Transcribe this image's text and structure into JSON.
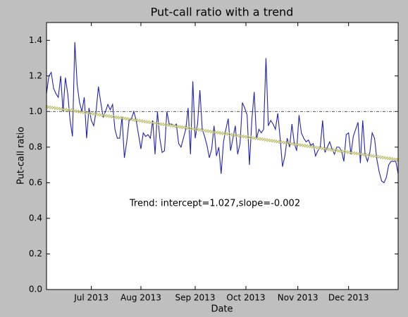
{
  "chart_data": {
    "type": "line",
    "title": "Put-call ratio with a trend",
    "xlabel": "Date",
    "ylabel": "Put-call ratio",
    "annotation": "Trend: intercept=1.027,slope=-0.002",
    "xlim": [
      0,
      149
    ],
    "xticks": [
      {
        "value": 19,
        "label": "Jul 2013"
      },
      {
        "value": 40,
        "label": "Aug 2013"
      },
      {
        "value": 63,
        "label": "Sep 2013"
      },
      {
        "value": 84.5,
        "label": "Oct 2013"
      },
      {
        "value": 106.5,
        "label": "Nov 2013"
      },
      {
        "value": 128,
        "label": "Dec 2013"
      }
    ],
    "ylim": [
      0,
      1.5
    ],
    "yticks": [
      {
        "value": 0,
        "label": "0.0"
      },
      0.2,
      0.4,
      0.6,
      0.8,
      {
        "value": 1,
        "label": "1.0"
      },
      1.2,
      1.4
    ],
    "reference_line": 1,
    "reference_color": "#555555",
    "series": [
      {
        "color": "#2323b0",
        "values": [
          1.1,
          1.2,
          1.22,
          1.13,
          1.1,
          1.08,
          1.2,
          1.0,
          1.19,
          1.1,
          0.95,
          0.86,
          1.39,
          1.15,
          1.05,
          1.0,
          1.08,
          0.85,
          1.02,
          0.95,
          0.92,
          1.0,
          1.14,
          1.05,
          0.97,
          1.0,
          1.04,
          1.01,
          1.04,
          0.9,
          0.85,
          0.85,
          0.97,
          0.74,
          0.83,
          0.95,
          0.96,
          1.0,
          0.95,
          0.87,
          0.79,
          0.88,
          0.86,
          0.87,
          0.85,
          0.95,
          0.76,
          1.0,
          0.85,
          0.77,
          0.78,
          1.0,
          0.93,
          0.93,
          0.92,
          0.93,
          0.82,
          0.8,
          0.85,
          0.9,
          1.02,
          0.76,
          1.17,
          0.85,
          0.93,
          1.12,
          0.9,
          0.86,
          0.81,
          0.74,
          0.79,
          0.92,
          0.75,
          0.8,
          0.65,
          0.83,
          0.9,
          0.96,
          0.78,
          0.85,
          0.92,
          0.76,
          0.82,
          1.05,
          1.02,
          0.98,
          0.7,
          0.95,
          1.11,
          0.85,
          0.9,
          0.88,
          0.9,
          1.3,
          0.92,
          0.95,
          0.93,
          0.9,
          0.99,
          0.85,
          0.69,
          0.75,
          0.85,
          0.8,
          0.93,
          0.82,
          0.78,
          0.98,
          0.88,
          0.85,
          0.83,
          0.84,
          0.81,
          0.82,
          0.75,
          0.78,
          0.8,
          0.95,
          0.77,
          0.8,
          0.83,
          0.79,
          0.76,
          0.8,
          0.8,
          0.78,
          0.72,
          0.87,
          0.88,
          0.76,
          0.86,
          0.9,
          0.94,
          0.71,
          0.95,
          0.76,
          0.72,
          0.77,
          0.88,
          0.85,
          0.73,
          0.66,
          0.61,
          0.6,
          0.63,
          0.7,
          0.72,
          0.72,
          0.72,
          0.65
        ]
      },
      {
        "color": "#bdbd6a",
        "marker": "x",
        "values": [
          1.027,
          1.025,
          1.023,
          1.021,
          1.019,
          1.017,
          1.015,
          1.013,
          1.011,
          1.009,
          1.007,
          1.005,
          1.003,
          1.001,
          0.999,
          0.997,
          0.995,
          0.993,
          0.991,
          0.989,
          0.987,
          0.985,
          0.983,
          0.981,
          0.979,
          0.977,
          0.975,
          0.973,
          0.971,
          0.969,
          0.967,
          0.965,
          0.963,
          0.961,
          0.959,
          0.957,
          0.955,
          0.953,
          0.951,
          0.949,
          0.947,
          0.945,
          0.943,
          0.941,
          0.939,
          0.937,
          0.935,
          0.933,
          0.931,
          0.929,
          0.927,
          0.925,
          0.923,
          0.921,
          0.919,
          0.917,
          0.915,
          0.913,
          0.911,
          0.909,
          0.907,
          0.905,
          0.903,
          0.901,
          0.899,
          0.897,
          0.895,
          0.893,
          0.891,
          0.889,
          0.887,
          0.885,
          0.883,
          0.881,
          0.879,
          0.877,
          0.875,
          0.873,
          0.871,
          0.869,
          0.867,
          0.865,
          0.863,
          0.861,
          0.859,
          0.857,
          0.855,
          0.853,
          0.851,
          0.849,
          0.847,
          0.845,
          0.843,
          0.841,
          0.839,
          0.837,
          0.835,
          0.833,
          0.831,
          0.829,
          0.827,
          0.825,
          0.823,
          0.821,
          0.819,
          0.817,
          0.815,
          0.813,
          0.811,
          0.809,
          0.807,
          0.805,
          0.803,
          0.801,
          0.799,
          0.797,
          0.795,
          0.793,
          0.791,
          0.789,
          0.787,
          0.785,
          0.783,
          0.781,
          0.779,
          0.777,
          0.775,
          0.773,
          0.771,
          0.769,
          0.767,
          0.765,
          0.763,
          0.761,
          0.759,
          0.757,
          0.755,
          0.753,
          0.751,
          0.749,
          0.747,
          0.745,
          0.743,
          0.741,
          0.739,
          0.737,
          0.735,
          0.733,
          0.731,
          0.729
        ]
      }
    ]
  }
}
